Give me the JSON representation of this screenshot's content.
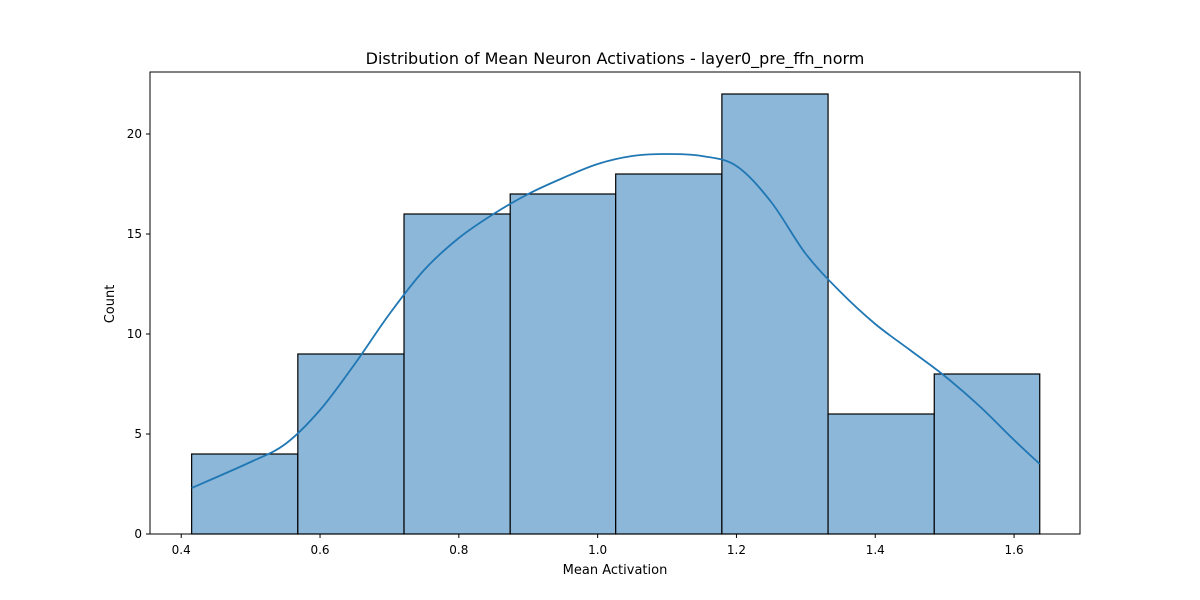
{
  "chart_data": {
    "type": "histogram",
    "title": "Distribution of Mean Neuron Activations - layer0_pre_ffn_norm",
    "xlabel": "Mean Activation",
    "ylabel": "Count",
    "xlim": [
      0.355,
      1.695
    ],
    "ylim": [
      0,
      23.1
    ],
    "x_ticks": [
      0.4,
      0.6,
      0.8,
      1.0,
      1.2,
      1.4,
      1.6
    ],
    "x_tick_labels": [
      "0.4",
      "0.6",
      "0.8",
      "1.0",
      "1.2",
      "1.4",
      "1.6"
    ],
    "y_ticks": [
      0,
      5,
      10,
      15,
      20
    ],
    "y_tick_labels": [
      "0",
      "5",
      "10",
      "15",
      "20"
    ],
    "bins": [
      {
        "x0": 0.415,
        "x1": 0.568,
        "count": 4
      },
      {
        "x0": 0.568,
        "x1": 0.721,
        "count": 9
      },
      {
        "x0": 0.721,
        "x1": 0.874,
        "count": 16
      },
      {
        "x0": 0.874,
        "x1": 1.026,
        "count": 17
      },
      {
        "x0": 1.026,
        "x1": 1.179,
        "count": 18
      },
      {
        "x0": 1.179,
        "x1": 1.332,
        "count": 22
      },
      {
        "x0": 1.332,
        "x1": 1.485,
        "count": 6
      },
      {
        "x0": 1.485,
        "x1": 1.637,
        "count": 8
      }
    ],
    "kde": {
      "x": [
        0.415,
        0.5,
        0.55,
        0.6,
        0.65,
        0.7,
        0.75,
        0.8,
        0.85,
        0.9,
        0.95,
        1.0,
        1.05,
        1.1,
        1.15,
        1.2,
        1.25,
        1.3,
        1.35,
        1.4,
        1.45,
        1.5,
        1.55,
        1.6,
        1.637
      ],
      "y": [
        2.3,
        3.6,
        4.5,
        6.2,
        8.5,
        11.0,
        13.2,
        14.8,
        16.0,
        17.0,
        17.8,
        18.5,
        18.9,
        19.0,
        18.9,
        18.4,
        16.6,
        14.0,
        12.1,
        10.5,
        9.2,
        7.9,
        6.4,
        4.7,
        3.5
      ]
    },
    "colors": {
      "bar_fill": "#8cb7d9",
      "bar_edge": "#000000",
      "kde_line": "#1f77b4",
      "axes": "#000000"
    },
    "grid": false,
    "legend": "none"
  }
}
